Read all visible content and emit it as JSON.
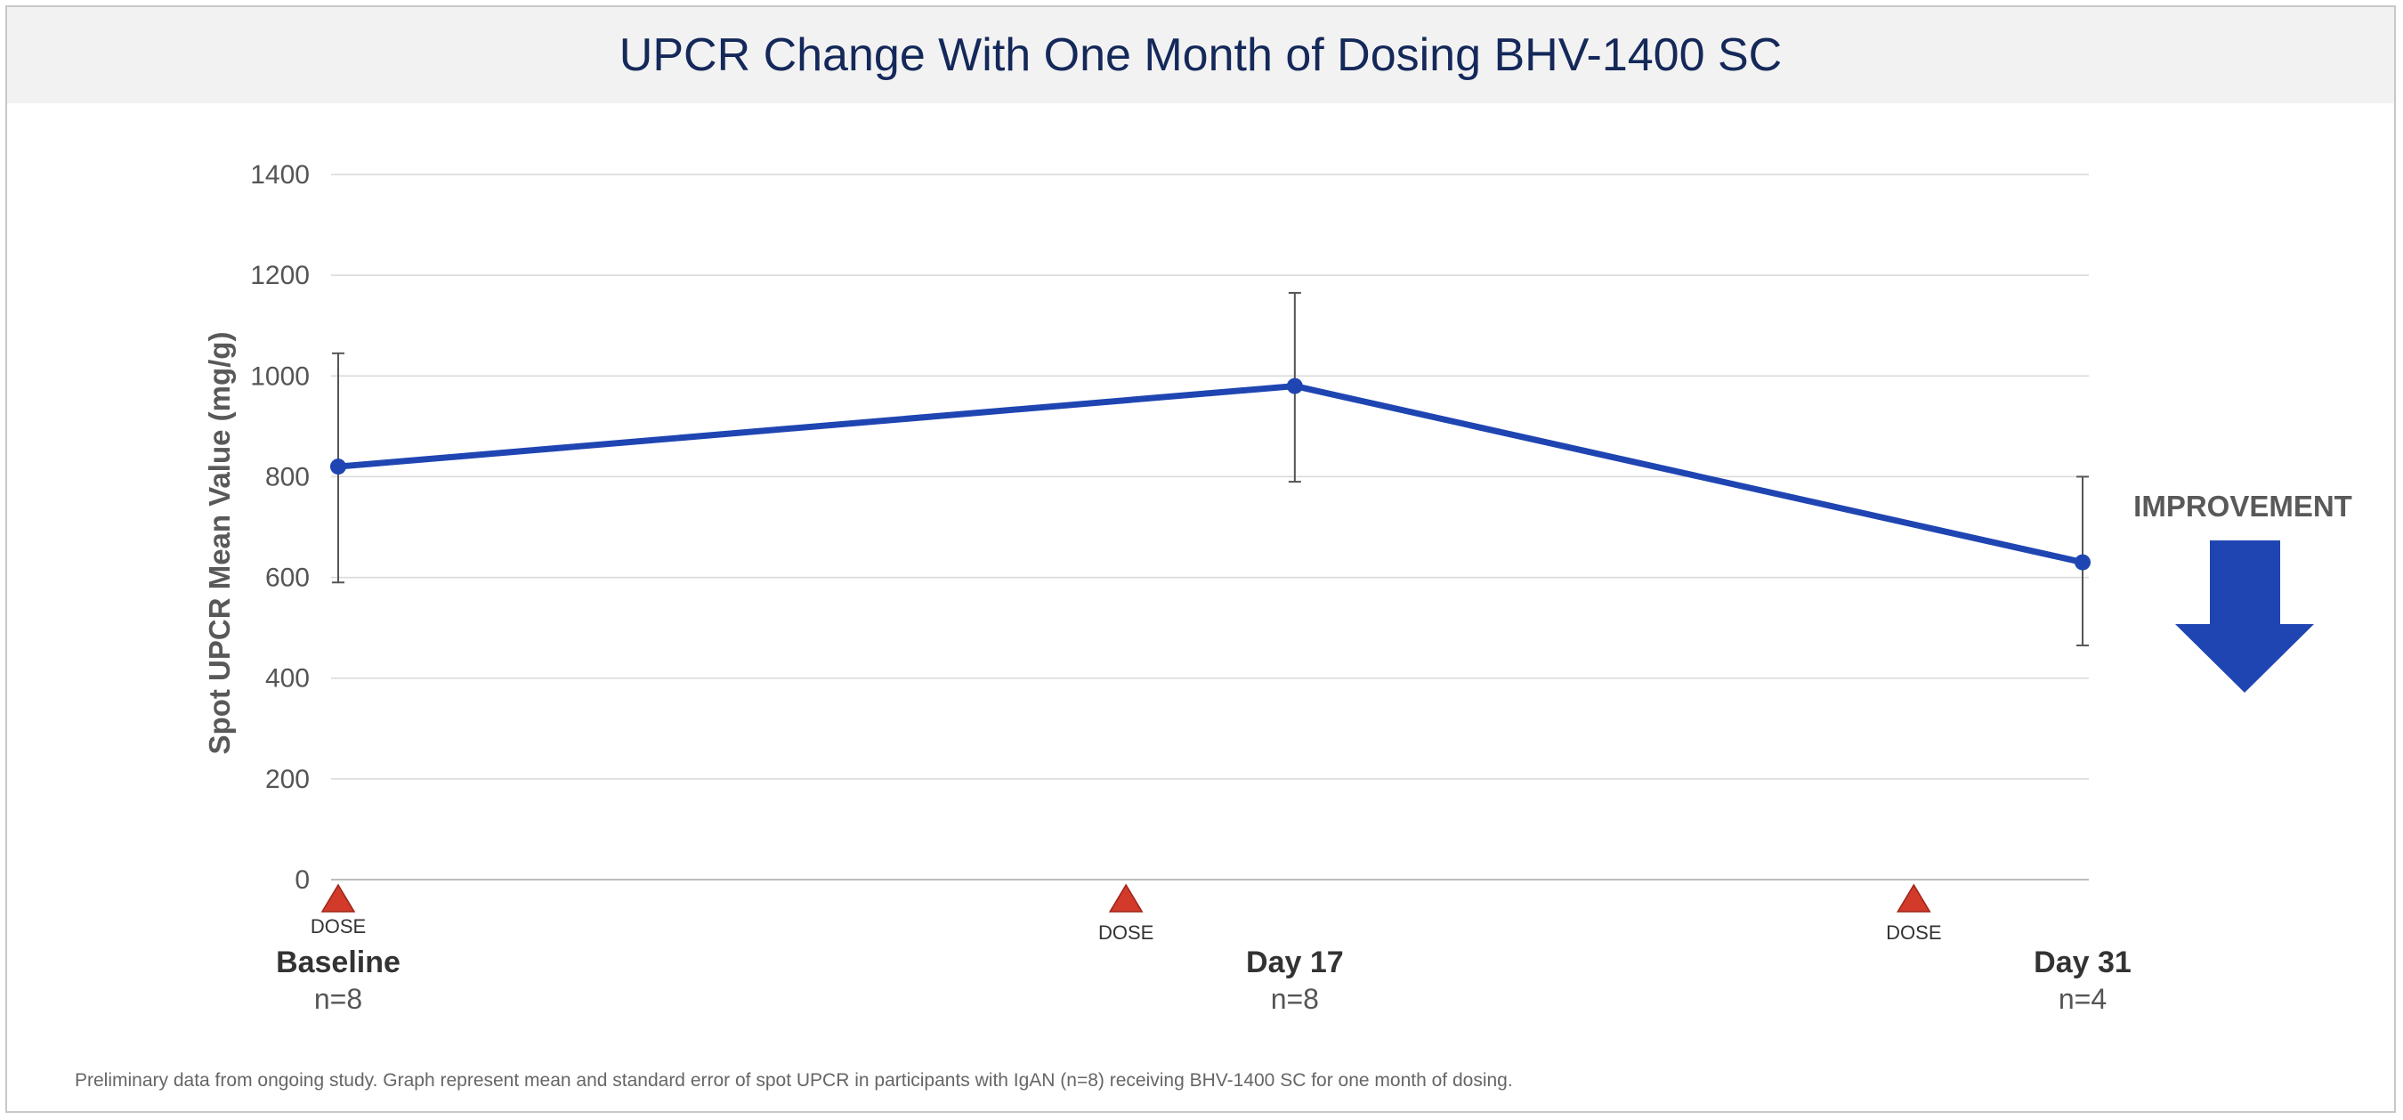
{
  "chart_data": {
    "type": "line",
    "title": "UPCR Change With One Month of Dosing BHV-1400 SC",
    "ylabel": "Spot UPCR Mean Value (mg/g)",
    "xlabel": "",
    "ylim": [
      0,
      1400
    ],
    "yticks": [
      0,
      200,
      400,
      600,
      800,
      1000,
      1200,
      1400
    ],
    "grid": true,
    "categories": [
      "Baseline",
      "Day 17",
      "Day 31"
    ],
    "n_labels": [
      "n=8",
      "n=8",
      "n=4"
    ],
    "x_days": [
      0,
      17,
      31
    ],
    "series": [
      {
        "values": [
          820,
          980,
          630
        ],
        "error_low": [
          590,
          790,
          465
        ],
        "error_high": [
          1045,
          1165,
          800
        ],
        "color": "#1f45b2"
      }
    ],
    "dose_markers": {
      "label": "DOSE",
      "days": [
        0,
        14,
        28
      ],
      "color": "#d23a2a"
    },
    "annotation": {
      "text": "IMPROVEMENT",
      "arrow": "down",
      "color": "#1f45b2"
    }
  },
  "footnote": "Preliminary data from ongoing study. Graph represent mean and standard error of spot UPCR in participants with IgAN (n=8) receiving BHV-1400 SC for one month of dosing."
}
